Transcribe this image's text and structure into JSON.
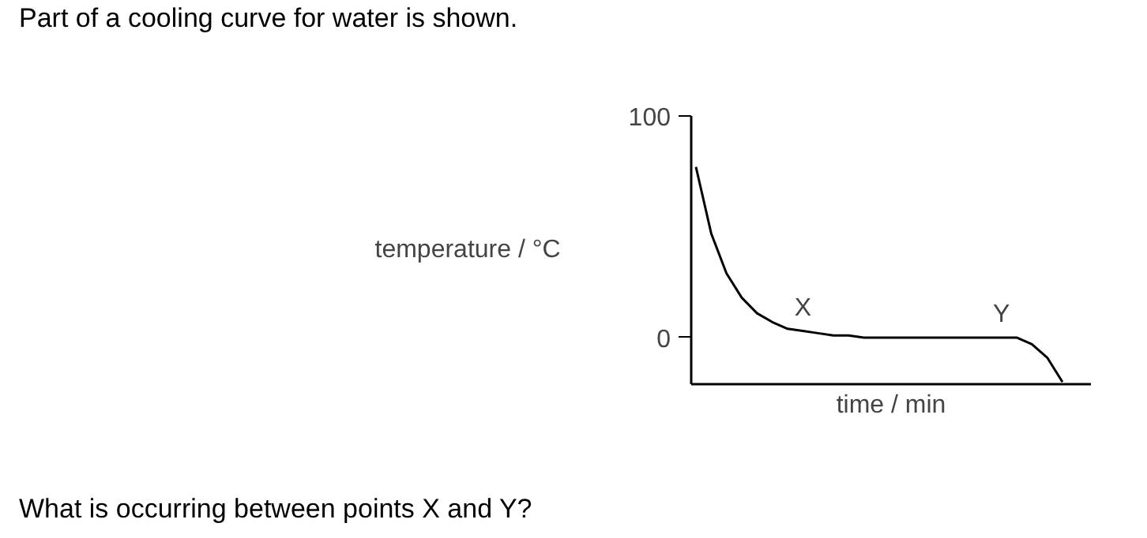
{
  "chart_data": {
    "type": "line",
    "title": "Part of a cooling curve for water is shown.",
    "xlabel": "time / min",
    "ylabel": "temperature / °C",
    "categories": [
      null,
      null,
      null,
      null,
      null,
      null,
      null,
      null,
      null,
      null,
      null,
      null,
      null,
      null,
      null,
      null,
      null,
      null,
      null,
      null,
      null,
      null,
      null,
      null,
      null
    ],
    "series": [
      {
        "color": "#000000",
        "values": [
          77,
          47,
          29,
          18,
          11,
          7,
          4,
          3,
          2,
          1,
          1,
          0,
          0,
          0,
          0,
          0,
          0,
          0,
          0,
          0,
          0,
          0,
          -3,
          -9,
          -20
        ],
        "value_labels": [
          null,
          null,
          null,
          null,
          null,
          null,
          null,
          "X",
          null,
          null,
          null,
          null,
          null,
          null,
          null,
          null,
          null,
          null,
          null,
          null,
          "Y",
          null,
          null,
          null,
          null
        ]
      }
    ],
    "ylim": [
      -21,
      100
    ],
    "yticks": [
      0,
      100
    ],
    "grid": false,
    "annotations": [
      "What is occurring between points X and Y?"
    ]
  }
}
